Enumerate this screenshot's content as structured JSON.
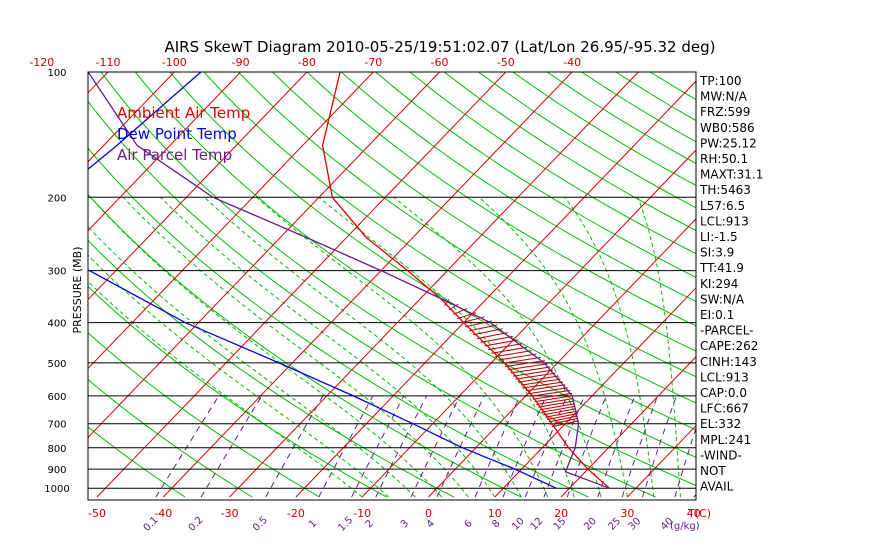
{
  "title": "AIRS SkewT Diagram 2010-05-25/19:51:02.07 (Lat/Lon 26.95/-95.32 deg)",
  "legend": [
    {
      "label": "Ambient Air Temp",
      "color": "#e00000"
    },
    {
      "label": "Dew Point Temp",
      "color": "#0000e0"
    },
    {
      "label": "Air Parcel Temp",
      "color": "#6a1a8a"
    }
  ],
  "stats": [
    "TP:100",
    "MW:N/A",
    "FRZ:599",
    "WB0:586",
    "PW:25.12",
    "RH:50.1",
    "MAXT:31.1",
    "TH:5463",
    "L57:6.5",
    "LCL:913",
    "LI:-1.5",
    "SI:3.9",
    "TT:41.9",
    "KI:294",
    "SW:N/A",
    "EI:0.1",
    "-PARCEL-",
    "CAPE:262",
    "CINH:143",
    "LCL:913",
    "CAP:0.0",
    "LFC:667",
    "EL:332",
    "MPL:241",
    "-WIND-",
    "NOT",
    "AVAIL"
  ],
  "colors": {
    "isotherm": "#e00000",
    "dry_adiabat": "#00c000",
    "moist_adiabat": "#00c000",
    "mixing_ratio": "#6a1a8a",
    "isobar": "#000000",
    "cape_hatch": "#b00000"
  },
  "chart_data": {
    "type": "line",
    "diagram": "skew-t log-p",
    "ylabel": "PRESSURE (MB)",
    "xlabel_top_right": "",
    "xlabel_bottom_right": "T(C)",
    "mixing_ratio_unit_label": "(g/kg)",
    "yscale": "log",
    "ylim": [
      1050,
      100
    ],
    "pressure_ticks": [
      100,
      200,
      300,
      400,
      500,
      600,
      700,
      800,
      900,
      1000
    ],
    "top_temp_ticks": [
      -120,
      -110,
      -100,
      -90,
      -80,
      -70,
      -60,
      -50,
      -40
    ],
    "bottom_temp_ticks": [
      -50,
      -40,
      -30,
      -20,
      -10,
      0,
      10,
      20,
      30,
      40
    ],
    "mixing_ratio_ticks": [
      "0.1",
      "0.2",
      "0.5",
      "1",
      "1.5",
      "2",
      "3",
      "4",
      "6",
      "8",
      "10",
      "12",
      "15",
      "20",
      "25",
      "30",
      "40"
    ],
    "series": [
      {
        "name": "Ambient Air Temp",
        "points": [
          {
            "p": 100,
            "t": -75
          },
          {
            "p": 150,
            "t": -67
          },
          {
            "p": 200,
            "t": -58
          },
          {
            "p": 250,
            "t": -47
          },
          {
            "p": 300,
            "t": -36
          },
          {
            "p": 350,
            "t": -27
          },
          {
            "p": 400,
            "t": -20
          },
          {
            "p": 500,
            "t": -8
          },
          {
            "p": 600,
            "t": 1
          },
          {
            "p": 700,
            "t": 8
          },
          {
            "p": 800,
            "t": 14
          },
          {
            "p": 900,
            "t": 20
          },
          {
            "p": 1000,
            "t": 26
          }
        ]
      },
      {
        "name": "Dew Point Temp",
        "points": [
          {
            "p": 100,
            "t": -96
          },
          {
            "p": 150,
            "t": -98
          },
          {
            "p": 200,
            "t": -100
          },
          {
            "p": 250,
            "t": -101
          },
          {
            "p": 300,
            "t": -84
          },
          {
            "p": 400,
            "t": -62
          },
          {
            "p": 500,
            "t": -42
          },
          {
            "p": 600,
            "t": -26
          },
          {
            "p": 700,
            "t": -13
          },
          {
            "p": 800,
            "t": -2
          },
          {
            "p": 900,
            "t": 9
          },
          {
            "p": 1000,
            "t": 18
          }
        ]
      },
      {
        "name": "Air Parcel Temp",
        "points": [
          {
            "p": 100,
            "t": -113
          },
          {
            "p": 150,
            "t": -95
          },
          {
            "p": 200,
            "t": -76
          },
          {
            "p": 250,
            "t": -56
          },
          {
            "p": 300,
            "t": -40
          },
          {
            "p": 350,
            "t": -27
          },
          {
            "p": 400,
            "t": -16
          },
          {
            "p": 500,
            "t": -2
          },
          {
            "p": 600,
            "t": 7
          },
          {
            "p": 700,
            "t": 12
          },
          {
            "p": 800,
            "t": 15
          },
          {
            "p": 913,
            "t": 17
          },
          {
            "p": 1000,
            "t": 26
          }
        ]
      }
    ]
  }
}
